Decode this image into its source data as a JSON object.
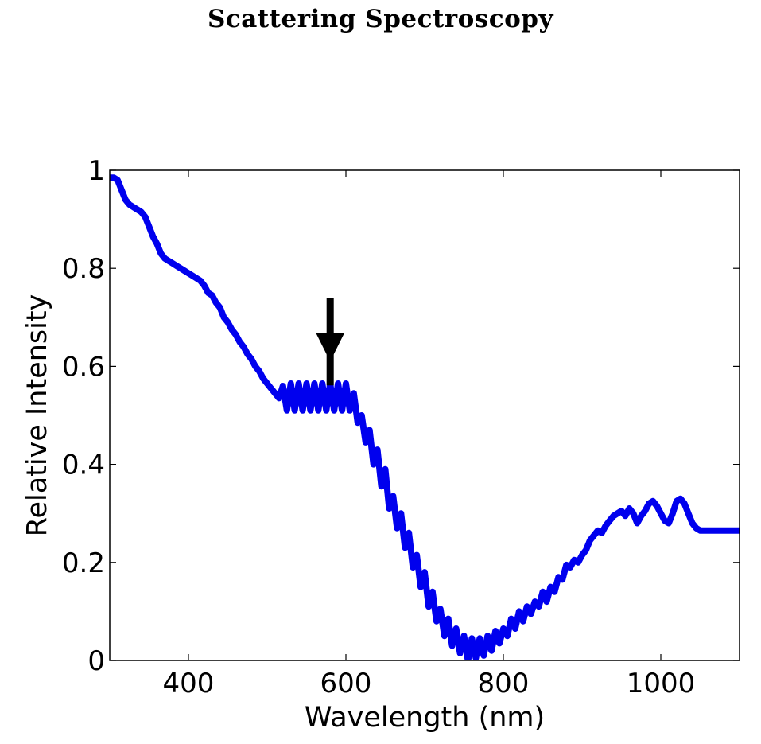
{
  "chart_data": {
    "type": "line",
    "title": "Scattering Spectroscopy",
    "xlabel": "Wavelength (nm)",
    "ylabel": "Relative Intensity",
    "xlim": [
      300,
      1100
    ],
    "ylim": [
      0,
      1
    ],
    "xticks": [
      400,
      600,
      800,
      1000
    ],
    "xtick_labels": [
      "400",
      "600",
      "800",
      "1000"
    ],
    "yticks": [
      0,
      0.2,
      0.4,
      0.6,
      0.8,
      1
    ],
    "ytick_labels": [
      "0",
      "0.2",
      "0.4",
      "0.6",
      "0.8",
      "1"
    ],
    "grid": false,
    "colors": {
      "series": "#0000ee",
      "axes": "#000000",
      "annotation": "#000000"
    },
    "annotation": {
      "type": "arrow",
      "x": 580,
      "y_tail": 0.74,
      "y_head": 0.61
    },
    "series": [
      {
        "color": "#0000ee",
        "x": [
          300,
          305,
          310,
          315,
          320,
          325,
          330,
          335,
          340,
          345,
          350,
          355,
          360,
          365,
          370,
          375,
          380,
          385,
          390,
          395,
          400,
          405,
          410,
          415,
          420,
          425,
          430,
          435,
          440,
          445,
          450,
          455,
          460,
          465,
          470,
          475,
          480,
          485,
          490,
          495,
          500,
          505,
          510,
          515,
          520,
          525,
          530,
          535,
          540,
          545,
          550,
          555,
          560,
          565,
          570,
          575,
          580,
          585,
          590,
          595,
          600,
          605,
          610,
          615,
          620,
          625,
          630,
          635,
          640,
          645,
          650,
          655,
          660,
          665,
          670,
          675,
          680,
          685,
          690,
          695,
          700,
          705,
          710,
          715,
          720,
          725,
          730,
          735,
          740,
          745,
          750,
          755,
          760,
          765,
          770,
          775,
          780,
          785,
          790,
          795,
          800,
          805,
          810,
          815,
          820,
          825,
          830,
          835,
          840,
          845,
          850,
          855,
          860,
          865,
          870,
          875,
          880,
          885,
          890,
          895,
          900,
          905,
          910,
          915,
          920,
          925,
          930,
          935,
          940,
          945,
          950,
          955,
          960,
          965,
          970,
          975,
          980,
          985,
          990,
          995,
          1000,
          1005,
          1010,
          1015,
          1020,
          1025,
          1030,
          1035,
          1040,
          1045,
          1050,
          1055,
          1060,
          1065,
          1070,
          1075,
          1080,
          1085,
          1090,
          1095,
          1100
        ],
        "y": [
          0.985,
          0.985,
          0.98,
          0.96,
          0.94,
          0.93,
          0.925,
          0.92,
          0.915,
          0.905,
          0.885,
          0.865,
          0.85,
          0.83,
          0.82,
          0.815,
          0.81,
          0.805,
          0.8,
          0.795,
          0.79,
          0.785,
          0.78,
          0.775,
          0.765,
          0.75,
          0.745,
          0.73,
          0.72,
          0.7,
          0.69,
          0.675,
          0.665,
          0.65,
          0.64,
          0.625,
          0.615,
          0.6,
          0.59,
          0.575,
          0.565,
          0.555,
          0.545,
          0.535,
          0.56,
          0.51,
          0.565,
          0.51,
          0.565,
          0.51,
          0.565,
          0.51,
          0.565,
          0.51,
          0.565,
          0.51,
          0.565,
          0.51,
          0.565,
          0.51,
          0.565,
          0.51,
          0.545,
          0.485,
          0.5,
          0.445,
          0.47,
          0.4,
          0.43,
          0.355,
          0.39,
          0.31,
          0.335,
          0.27,
          0.3,
          0.23,
          0.26,
          0.19,
          0.215,
          0.15,
          0.18,
          0.11,
          0.14,
          0.08,
          0.105,
          0.05,
          0.085,
          0.03,
          0.065,
          0.015,
          0.05,
          0.0,
          0.045,
          0.005,
          0.045,
          0.01,
          0.05,
          0.02,
          0.06,
          0.035,
          0.065,
          0.05,
          0.085,
          0.065,
          0.1,
          0.08,
          0.11,
          0.095,
          0.12,
          0.11,
          0.14,
          0.12,
          0.15,
          0.14,
          0.17,
          0.165,
          0.195,
          0.19,
          0.205,
          0.2,
          0.215,
          0.225,
          0.245,
          0.255,
          0.265,
          0.26,
          0.275,
          0.285,
          0.295,
          0.3,
          0.305,
          0.295,
          0.31,
          0.3,
          0.28,
          0.295,
          0.305,
          0.32,
          0.325,
          0.315,
          0.3,
          0.285,
          0.28,
          0.3,
          0.325,
          0.33,
          0.32,
          0.3,
          0.28,
          0.27,
          0.265,
          0.265,
          0.265,
          0.265,
          0.265,
          0.265,
          0.265,
          0.265,
          0.265,
          0.265,
          0.265
        ]
      }
    ]
  }
}
